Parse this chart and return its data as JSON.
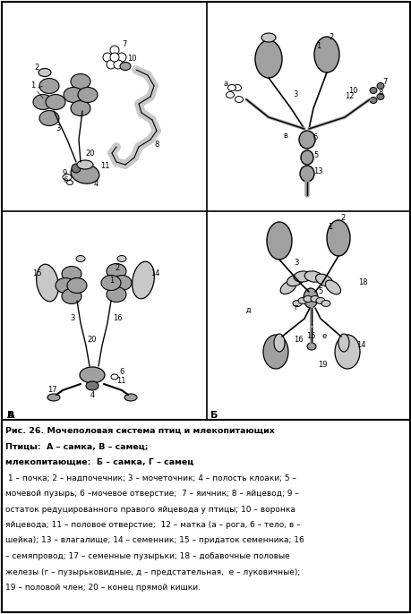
{
  "caption_lines": [
    "Рис. 26. Мочеполовая система птиц и млекопитающих",
    "Птицы:  А – самка, В – самец;",
    "млекопитающие:  Б – самка, Г – самец",
    " 1 – почка; 2 – надпочечник; 3 – мочеточник; 4 – полость клоаки; 5 –",
    "мочевой пузырь; 6 –мочевое отверстие;  7 – яичник; 8 – яйцевод; 9 –",
    "остаток редуцированного правого яйцевода у птицы; 10 – воронка",
    "яйцевода; 11 – половое отверстие;  12 – матка (а – рога, б – тело, в –",
    "шейка); 13 – влагалище; 14 – семенник; 15 – придаток семенника; 16",
    "– семяпровод; 17 – семенные пузырьки; 18 – добавочные половые",
    "железы (г – пузырьковидные, д – предстательная,  е – луковичные);",
    "19 – половой член; 20 – конец прямой кишки."
  ],
  "bg_color": "#ffffff",
  "fig_width": 4.6,
  "fig_height": 6.86,
  "dpi": 100
}
